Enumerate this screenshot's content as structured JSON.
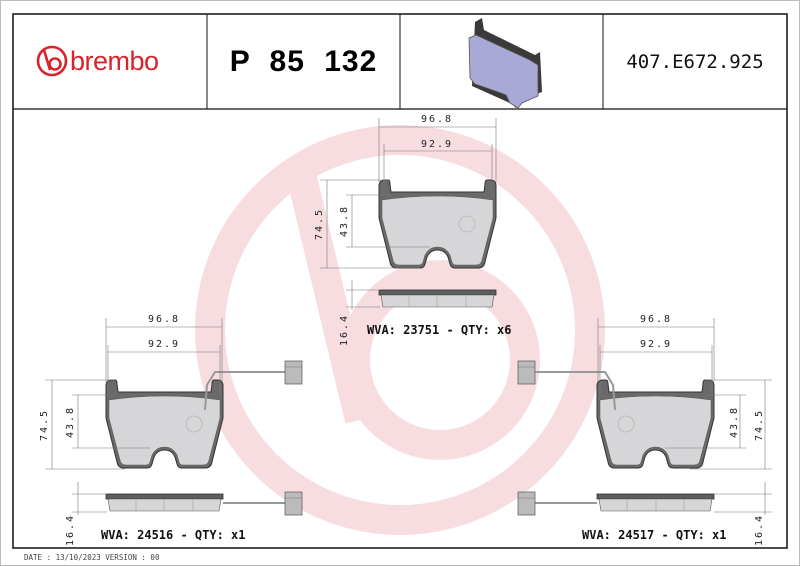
{
  "header": {
    "brand": "brembo",
    "part_number": "P 85 132",
    "reference": "407.E672.925",
    "logo_color": "#d8232a"
  },
  "drawings": {
    "top_pad": {
      "width_outer": "96.8",
      "width_inner": "92.9",
      "height_total": "74.5",
      "height_friction": "43.8",
      "thickness": "16.4",
      "label": "WVA: 23751 - QTY: x6"
    },
    "left_pad": {
      "width_outer": "96.8",
      "width_inner": "92.9",
      "height_total": "74.5",
      "height_friction": "43.8",
      "thickness": "16.4",
      "label": "WVA: 24516 - QTY: x1",
      "wear_sensor": true
    },
    "right_pad": {
      "width_outer": "96.8",
      "width_inner": "92.9",
      "height_total": "74.5",
      "height_friction": "43.8",
      "thickness": "16.4",
      "label": "WVA: 24517 - QTY: x1",
      "wear_sensor": true
    }
  },
  "watermark": {
    "color": "#f7d9dd"
  },
  "footer": {
    "text": "DATE : 13/10/2023 VERSION : 00"
  }
}
